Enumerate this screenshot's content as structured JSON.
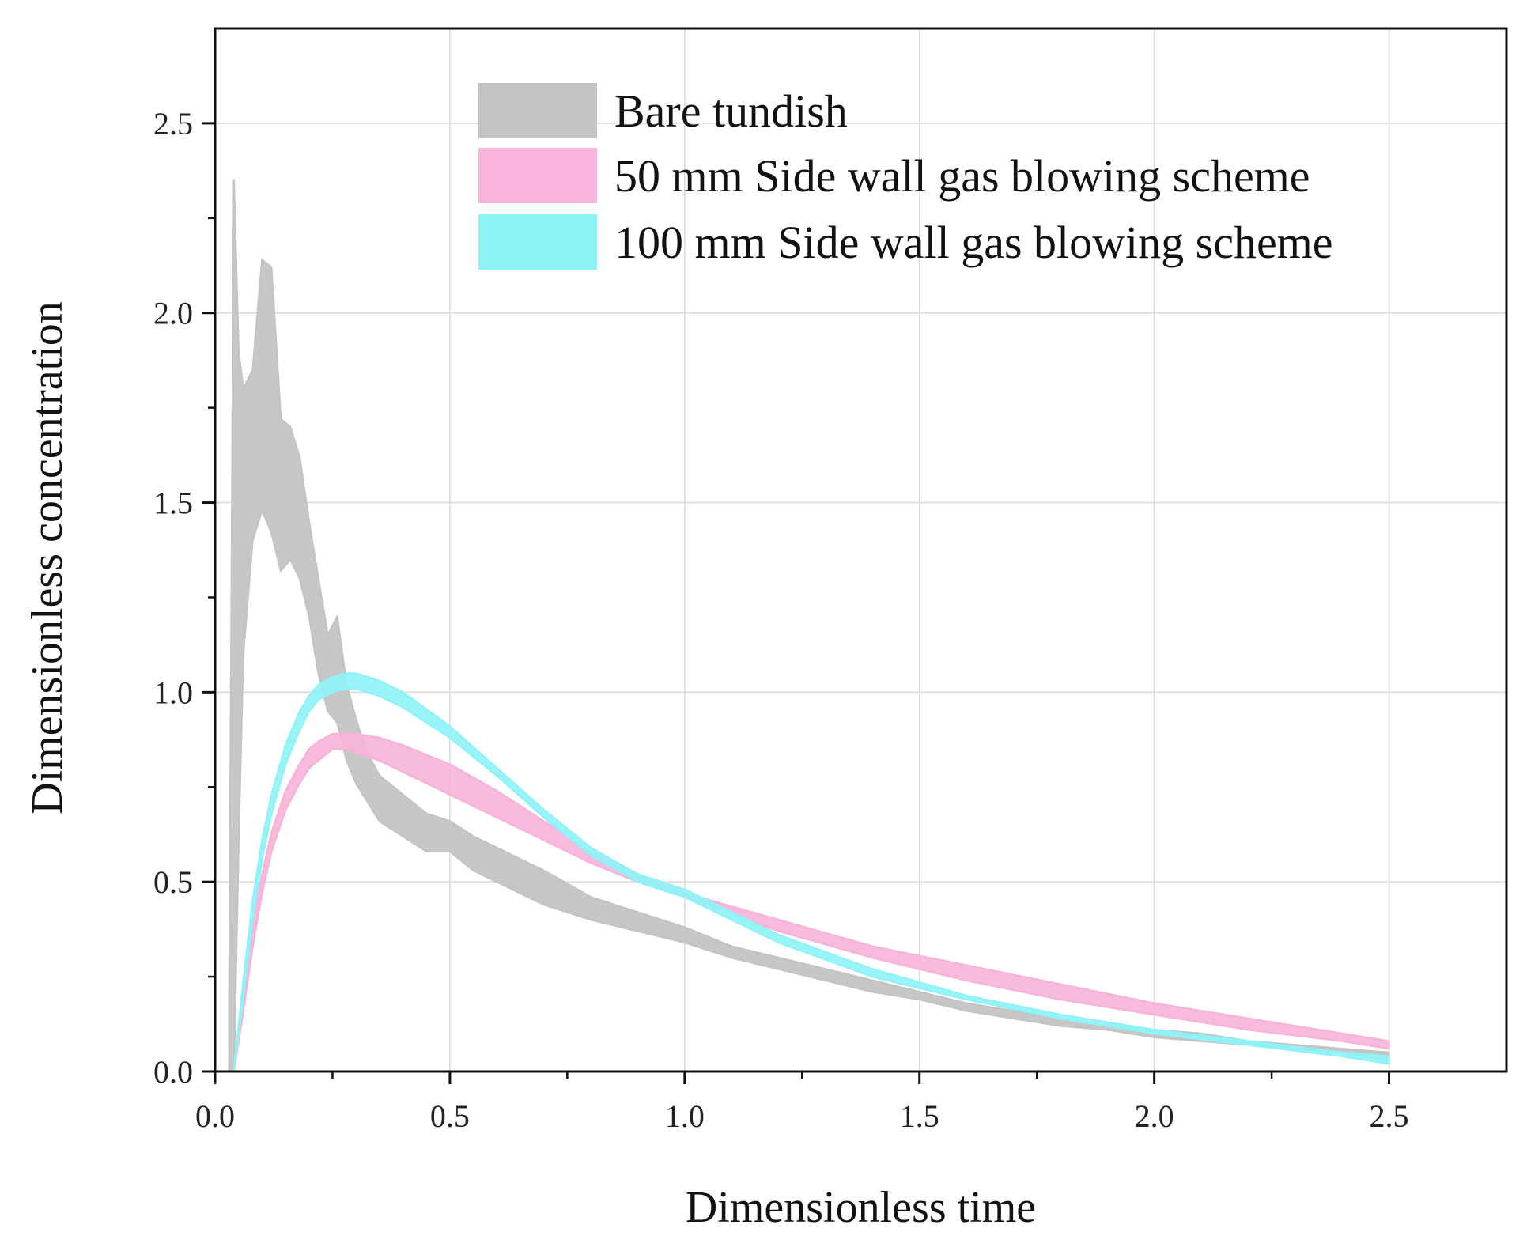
{
  "chart_data": {
    "type": "area",
    "xlabel": "Dimensionless time",
    "ylabel": "Dimensionless concentration",
    "xlim": [
      0.0,
      2.75
    ],
    "ylim": [
      0.0,
      2.75
    ],
    "xticks": [
      "0.0",
      "0.5",
      "1.0",
      "1.5",
      "2.0",
      "2.5"
    ],
    "yticks": [
      "0.0",
      "0.5",
      "1.0",
      "1.5",
      "2.0",
      "2.5"
    ],
    "grid": true,
    "legend_position": "top-right",
    "series": [
      {
        "name": "Bare tundish",
        "color": "#c4c4c4",
        "x": [
          0.03,
          0.04,
          0.05,
          0.06,
          0.08,
          0.1,
          0.12,
          0.14,
          0.16,
          0.18,
          0.2,
          0.22,
          0.24,
          0.26,
          0.28,
          0.3,
          0.32,
          0.35,
          0.4,
          0.45,
          0.5,
          0.55,
          0.6,
          0.7,
          0.8,
          0.9,
          1.0,
          1.1,
          1.2,
          1.3,
          1.4,
          1.5,
          1.6,
          1.7,
          1.8,
          1.9,
          2.0,
          2.1,
          2.2,
          2.3,
          2.4,
          2.5
        ],
        "upper": [
          0.2,
          2.35,
          1.9,
          1.8,
          1.85,
          2.14,
          2.12,
          1.72,
          1.7,
          1.62,
          1.45,
          1.3,
          1.15,
          1.2,
          1.02,
          0.93,
          0.85,
          0.78,
          0.73,
          0.68,
          0.66,
          0.62,
          0.59,
          0.53,
          0.46,
          0.42,
          0.38,
          0.33,
          0.3,
          0.27,
          0.24,
          0.21,
          0.18,
          0.16,
          0.14,
          0.12,
          0.11,
          0.1,
          0.08,
          0.07,
          0.06,
          0.05
        ],
        "lower": [
          0.0,
          0.0,
          0.6,
          1.1,
          1.4,
          1.48,
          1.42,
          1.32,
          1.35,
          1.3,
          1.2,
          1.05,
          0.95,
          0.92,
          0.82,
          0.76,
          0.72,
          0.66,
          0.62,
          0.58,
          0.58,
          0.53,
          0.5,
          0.44,
          0.4,
          0.37,
          0.34,
          0.3,
          0.27,
          0.24,
          0.21,
          0.19,
          0.16,
          0.14,
          0.12,
          0.11,
          0.09,
          0.08,
          0.07,
          0.06,
          0.05,
          0.03
        ]
      },
      {
        "name": "50 mm Side wall gas blowing scheme",
        "color": "#f7b3d9",
        "x": [
          0.04,
          0.06,
          0.08,
          0.1,
          0.12,
          0.15,
          0.18,
          0.2,
          0.22,
          0.25,
          0.28,
          0.3,
          0.35,
          0.4,
          0.5,
          0.6,
          0.7,
          0.8,
          0.9,
          1.0,
          1.2,
          1.4,
          1.6,
          1.8,
          2.0,
          2.2,
          2.4,
          2.5
        ],
        "upper": [
          0.0,
          0.2,
          0.38,
          0.52,
          0.63,
          0.74,
          0.81,
          0.85,
          0.87,
          0.89,
          0.89,
          0.89,
          0.88,
          0.86,
          0.81,
          0.74,
          0.66,
          0.58,
          0.52,
          0.47,
          0.4,
          0.33,
          0.28,
          0.23,
          0.18,
          0.14,
          0.1,
          0.08
        ],
        "lower": [
          0.0,
          0.16,
          0.33,
          0.47,
          0.58,
          0.69,
          0.76,
          0.8,
          0.82,
          0.85,
          0.85,
          0.84,
          0.82,
          0.79,
          0.73,
          0.67,
          0.61,
          0.55,
          0.5,
          0.46,
          0.37,
          0.3,
          0.24,
          0.19,
          0.15,
          0.11,
          0.08,
          0.06
        ]
      },
      {
        "name": "100 mm Side wall gas blowing scheme",
        "color": "#8ef3f7",
        "x": [
          0.04,
          0.06,
          0.08,
          0.1,
          0.12,
          0.15,
          0.18,
          0.2,
          0.22,
          0.25,
          0.28,
          0.3,
          0.35,
          0.4,
          0.5,
          0.6,
          0.7,
          0.8,
          0.9,
          1.0,
          1.2,
          1.4,
          1.6,
          1.8,
          2.0,
          2.2,
          2.4,
          2.5
        ],
        "upper": [
          0.0,
          0.24,
          0.45,
          0.61,
          0.73,
          0.86,
          0.95,
          0.99,
          1.02,
          1.04,
          1.05,
          1.05,
          1.03,
          1.0,
          0.91,
          0.8,
          0.69,
          0.59,
          0.52,
          0.48,
          0.36,
          0.27,
          0.2,
          0.15,
          0.11,
          0.08,
          0.05,
          0.04
        ],
        "lower": [
          0.0,
          0.2,
          0.4,
          0.56,
          0.68,
          0.81,
          0.9,
          0.95,
          0.98,
          1.0,
          1.01,
          1.01,
          0.99,
          0.96,
          0.88,
          0.78,
          0.67,
          0.57,
          0.5,
          0.46,
          0.34,
          0.25,
          0.19,
          0.14,
          0.1,
          0.07,
          0.04,
          0.02
        ]
      }
    ]
  }
}
